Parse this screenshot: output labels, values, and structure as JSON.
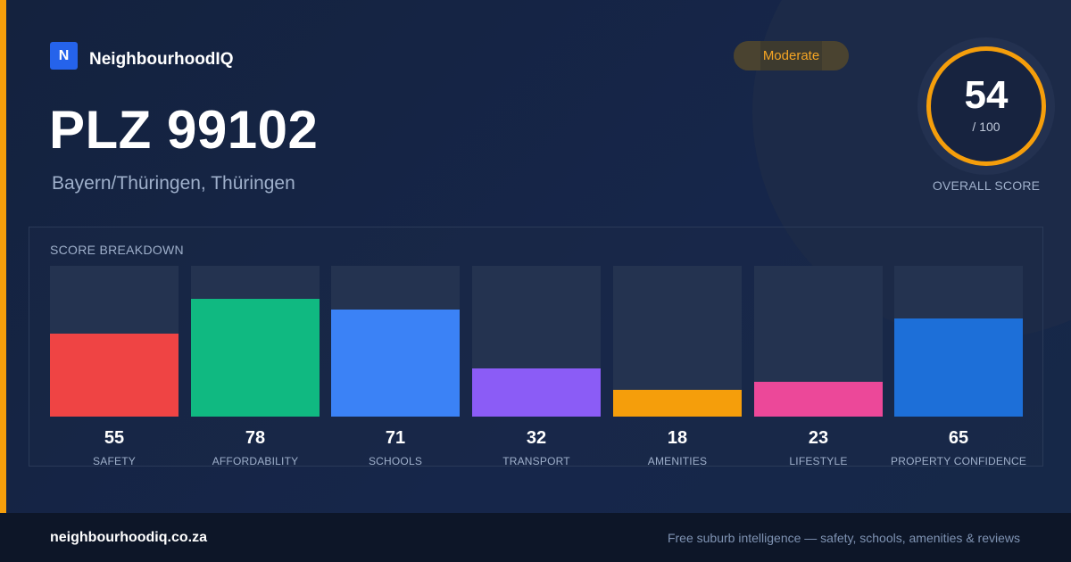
{
  "brand": {
    "logo_letter": "N",
    "name": "NeighbourhoodIQ"
  },
  "location": {
    "title": "PLZ 99102",
    "subtitle": "Bayern/Thüringen, Thüringen"
  },
  "badge": {
    "label": "Moderate",
    "color": "#f5a524"
  },
  "overall": {
    "value": "54",
    "max_label": "/ 100",
    "label": "OVERALL SCORE",
    "ring_color": "#f59e0b"
  },
  "breakdown": {
    "title": "SCORE BREAKDOWN",
    "max": 100,
    "items": [
      {
        "label": "SAFETY",
        "value": 55,
        "color": "#ef4444"
      },
      {
        "label": "AFFORDABILITY",
        "value": 78,
        "color": "#10b981"
      },
      {
        "label": "SCHOOLS",
        "value": 71,
        "color": "#3b82f6"
      },
      {
        "label": "TRANSPORT",
        "value": 32,
        "color": "#8b5cf6"
      },
      {
        "label": "AMENITIES",
        "value": 18,
        "color": "#f59e0b"
      },
      {
        "label": "LIFESTYLE",
        "value": 23,
        "color": "#ec4899"
      },
      {
        "label": "PROPERTY CONFIDENCE",
        "value": 65,
        "color": "#1d6fd8"
      }
    ]
  },
  "footer": {
    "domain": "neighbourhoodiq.co.za",
    "tagline": "Free suburb intelligence — safety, schools, amenities & reviews"
  }
}
